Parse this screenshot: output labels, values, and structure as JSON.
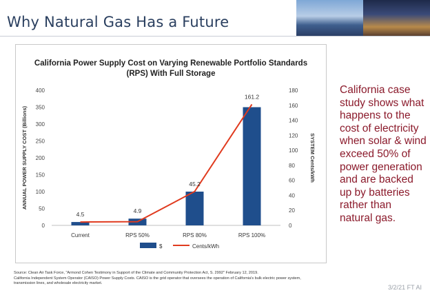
{
  "slide": {
    "title": "Why Natural Gas Has a Future",
    "right_text": "California case study shows what happens to the cost of electricity when solar & wind exceed 50% of power generation and are backed up by batteries rather than natural gas.",
    "source_line1": "Source:  Clean Air Task Force, \"Armond Cohen Testimony in Support of the Climate and Community Protection Act, S. 2992\" February 12, 2019.",
    "source_line2": "California Independent System Operator (CAISO) Power Supply Costs.  CAISO is the grid operator that oversees the operation of California's bulk electric power system,",
    "source_line3": "transmission lines, and wholesale electricity market.",
    "date": "3/2/21 FT AI",
    "accent_color": "#8b1a2b"
  },
  "chart_data": {
    "type": "bar",
    "title_line1": "California Power Supply Cost on Varying Renewable Portfolio Standards",
    "title_line2": "(RPS) With Full Storage",
    "categories": [
      "Current",
      "RPS 50%",
      "RPS 80%",
      "RPS 100%"
    ],
    "series": [
      {
        "name": "$",
        "type": "bar",
        "axis": "left",
        "color": "#1f4e8c",
        "values": [
          10,
          20,
          100,
          350
        ]
      },
      {
        "name": "Cents/kWh",
        "type": "line",
        "axis": "right",
        "color": "#e03a1e",
        "values": [
          4.5,
          4.9,
          45.2,
          161.2
        ]
      }
    ],
    "data_labels": [
      "4.5",
      "4.9",
      "45.2",
      "161.2"
    ],
    "ylabel": "ANNUAL POWER SUPPLY COST (Billions)",
    "y2label": "SYSTEM Cents/kWh",
    "ylim": [
      0,
      400
    ],
    "y2lim": [
      0,
      180
    ],
    "yticks": [
      "0",
      "50",
      "100",
      "150",
      "200",
      "250",
      "300",
      "350",
      "400"
    ],
    "y2ticks": [
      "0",
      "20",
      "40",
      "60",
      "80",
      "100",
      "120",
      "140",
      "160",
      "180"
    ],
    "legend_position": "bottom",
    "grid": false
  }
}
